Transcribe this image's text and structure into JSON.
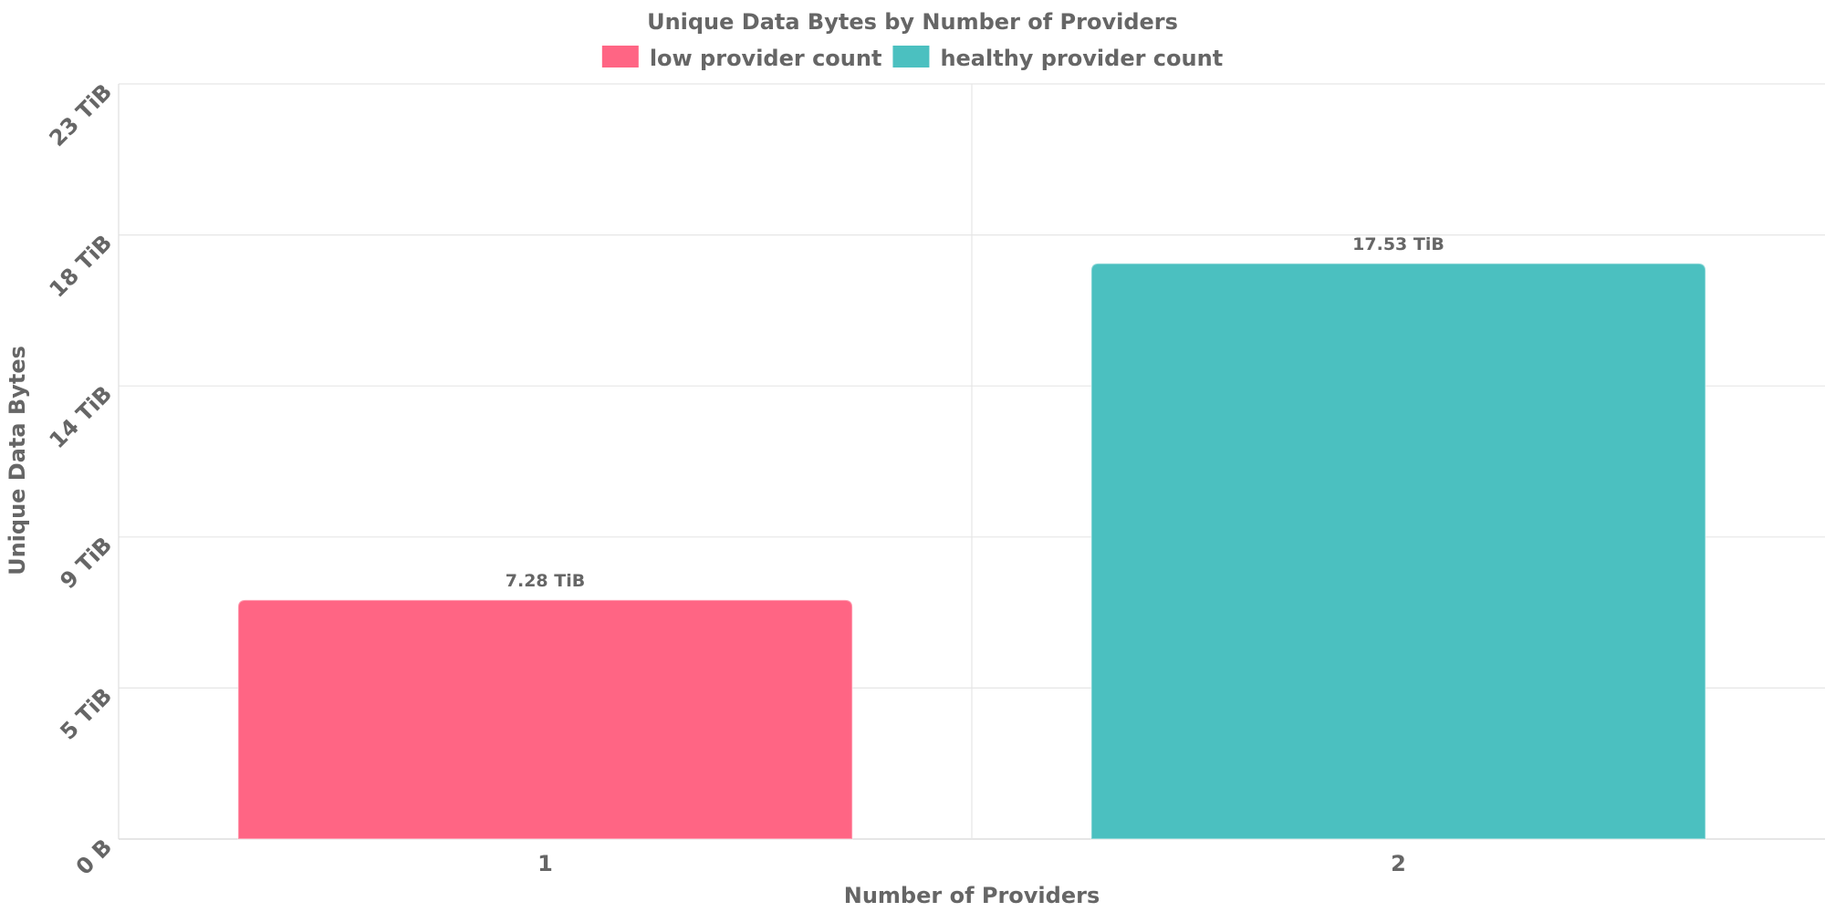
{
  "chart_data": {
    "type": "bar",
    "title": "Unique Data Bytes by Number of Providers",
    "xlabel": "Number of Providers",
    "ylabel": "Unique Data Bytes",
    "categories": [
      "1",
      "2"
    ],
    "series": [
      {
        "name": "low provider count",
        "color": "#ff6584",
        "values": [
          7.28,
          null
        ],
        "labels": [
          "7.28 TiB",
          ""
        ]
      },
      {
        "name": "healthy provider count",
        "color": "#4bc0c0",
        "values": [
          null,
          17.53
        ],
        "labels": [
          "",
          "17.53 TiB"
        ]
      }
    ],
    "yticks": [
      {
        "value": 0,
        "label": "0 B"
      },
      {
        "value": 4.6,
        "label": "5 TiB"
      },
      {
        "value": 9.2,
        "label": "9 TiB"
      },
      {
        "value": 13.8,
        "label": "14 TiB"
      },
      {
        "value": 18.4,
        "label": "18 TiB"
      },
      {
        "value": 23,
        "label": "23 TiB"
      }
    ],
    "ylim": [
      0,
      23
    ],
    "grid": true,
    "legend_position": "top"
  }
}
